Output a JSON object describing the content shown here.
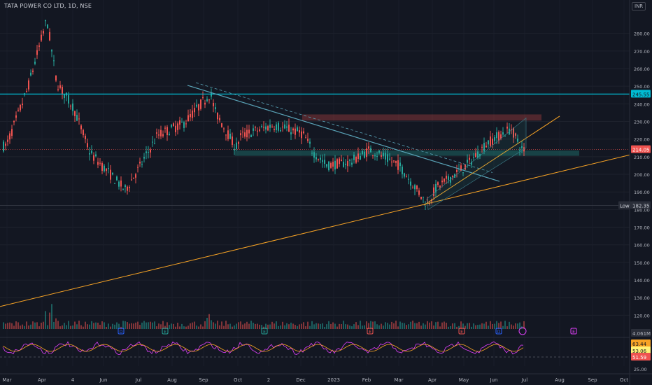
{
  "header": {
    "symbol_line": "TATA POWER CO LTD, 1D, NSE",
    "currency": "INR"
  },
  "chart_data": {
    "type": "candlestick",
    "symbol": "TATA POWER CO LTD",
    "interval": "1D",
    "exchange": "NSE",
    "currency": "INR",
    "price_axis": {
      "ticks": [
        120,
        130,
        140,
        150,
        160,
        170,
        180,
        190,
        200,
        210,
        220,
        230,
        240,
        250,
        260,
        270,
        280
      ],
      "ylim": [
        115,
        289
      ]
    },
    "time_axis": {
      "labels": [
        "Mar",
        "Apr",
        "4",
        "Jun",
        "Jul",
        "Aug",
        "Sep",
        "Oct",
        "2",
        "Dec",
        "2023",
        "Feb",
        "Mar",
        "Apr",
        "May",
        "Jun",
        "Jul",
        "Aug",
        "Sep",
        "Oct"
      ]
    },
    "price_labels": {
      "resistance": "245.55",
      "last": "214.05",
      "low_label": "Low",
      "low": "182.35"
    },
    "price_path": [
      [
        "Mar",
        216
      ],
      [
        "Apr",
        248
      ],
      [
        "Apr",
        288
      ],
      [
        "Apr",
        252
      ],
      [
        "4",
        238
      ],
      [
        "Jun",
        212
      ],
      [
        "Jun",
        191
      ],
      [
        "Jul",
        205
      ],
      [
        "Jul",
        222
      ],
      [
        "Aug",
        229
      ],
      [
        "Sep",
        246
      ],
      [
        "Sep",
        236
      ],
      [
        "Oct",
        215
      ],
      [
        "Oct",
        222
      ],
      [
        "2",
        228
      ],
      [
        "Dec",
        223
      ],
      [
        "Dec",
        213
      ],
      [
        "2023",
        205
      ],
      [
        "Feb",
        207
      ],
      [
        "Feb",
        214
      ],
      [
        "Mar",
        205
      ],
      [
        "Mar",
        183
      ],
      [
        "Apr",
        192
      ],
      [
        "May",
        205
      ],
      [
        "Jun",
        218
      ],
      [
        "Jun",
        226
      ],
      [
        "Jun",
        214
      ]
    ],
    "volume_label": "4.061M",
    "rsi": {
      "labels": [
        "63.44",
        "53.06",
        "51.59"
      ],
      "tick": "25.00"
    },
    "colors": {
      "up": "#26a69a",
      "down": "#ef5350",
      "resistance": "#00bcd4",
      "trendline": "#f7a325",
      "background": "#131722"
    }
  }
}
